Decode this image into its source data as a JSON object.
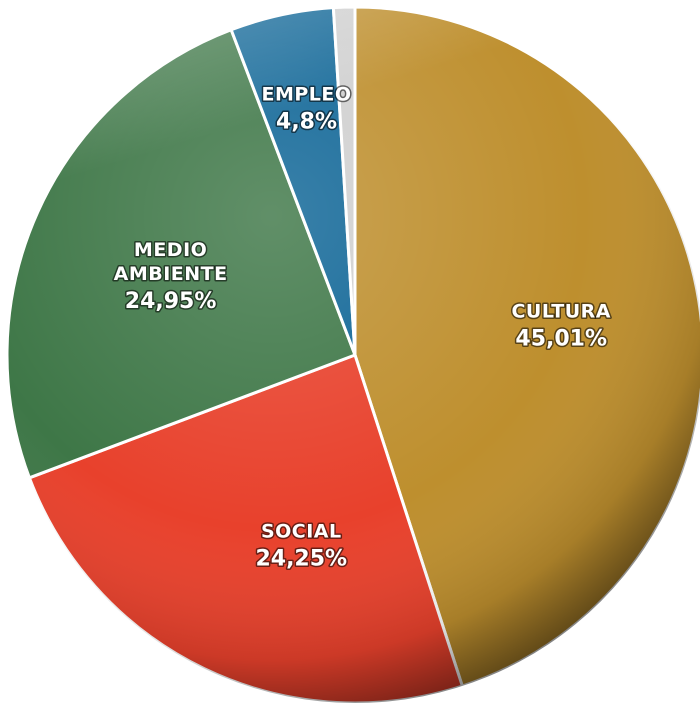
{
  "chart_data": {
    "type": "pie",
    "slices": [
      {
        "key": "cultura",
        "lines": [
          "CULTURA"
        ],
        "value": 45.01,
        "value_label": "45,01%",
        "color": "#BE8F2E"
      },
      {
        "key": "social",
        "lines": [
          "SOCIAL"
        ],
        "value": 24.25,
        "value_label": "24,25%",
        "color": "#E8412C"
      },
      {
        "key": "medio-ambiente",
        "lines": [
          "MEDIO",
          "AMBIENTE"
        ],
        "value": 24.95,
        "value_label": "24,95%",
        "color": "#3E7747"
      },
      {
        "key": "empleo",
        "lines": [
          "EMPLEO"
        ],
        "value": 4.8,
        "value_label": "4,8%",
        "color": "#0E6596"
      },
      {
        "key": "otros",
        "lines": [],
        "value": 0.99,
        "value_label": "",
        "color": "#CFCFCF"
      }
    ],
    "start": "12 o'clock",
    "direction": "clockwise",
    "legend": "none"
  }
}
